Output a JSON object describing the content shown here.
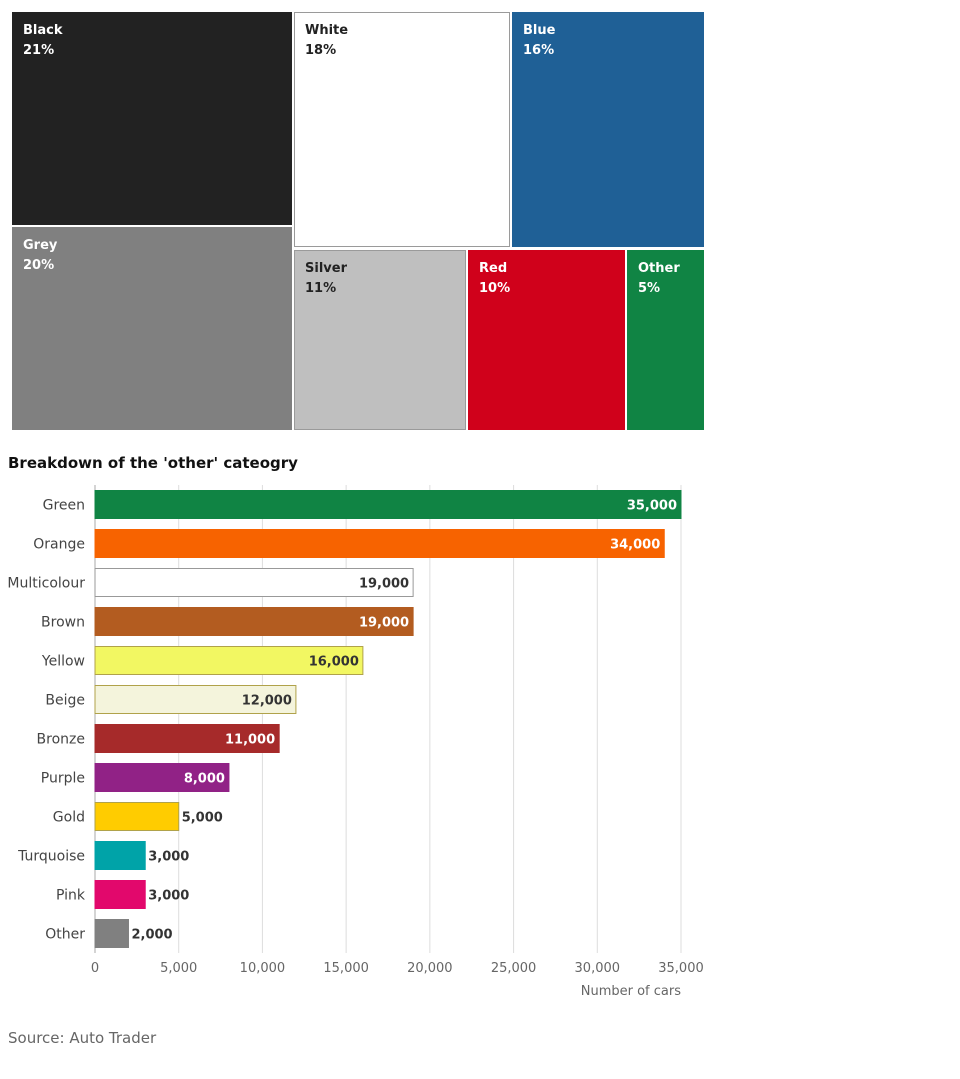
{
  "chart_data": [
    {
      "type": "treemap",
      "tiles": [
        {
          "name": "Black",
          "pct": "21%",
          "value": 21,
          "color": "#222222",
          "text_color": "#ffffff"
        },
        {
          "name": "White",
          "pct": "18%",
          "value": 18,
          "color": "#ffffff",
          "text_color": "#222222"
        },
        {
          "name": "Blue",
          "pct": "16%",
          "value": 16,
          "color": "#1f6096",
          "text_color": "#ffffff"
        },
        {
          "name": "Grey",
          "pct": "20%",
          "value": 20,
          "color": "#808080",
          "text_color": "#ffffff"
        },
        {
          "name": "Silver",
          "pct": "11%",
          "value": 11,
          "color": "#bfbfbf",
          "text_color": "#222222"
        },
        {
          "name": "Red",
          "pct": "10%",
          "value": 10,
          "color": "#d0011b",
          "text_color": "#ffffff"
        },
        {
          "name": "Other",
          "pct": "5%",
          "value": 5,
          "color": "#108444",
          "text_color": "#ffffff"
        }
      ]
    },
    {
      "type": "bar",
      "orientation": "horizontal",
      "title": "Breakdown of the 'other' cateogry",
      "xlabel": "Number of cars",
      "xlim": [
        0,
        35000
      ],
      "xticks": [
        "0",
        "5,000",
        "10,000",
        "15,000",
        "20,000",
        "25,000",
        "30,000",
        "35,000"
      ],
      "grid": true,
      "bars": [
        {
          "category": "Green",
          "value": 35000,
          "label": "35,000",
          "color": "#108444",
          "label_color": "#ffffff"
        },
        {
          "category": "Orange",
          "value": 34000,
          "label": "34,000",
          "color": "#f76300",
          "label_color": "#ffffff"
        },
        {
          "category": "Multicolour",
          "value": 19000,
          "label": "19,000",
          "color": "#ffffff",
          "label_color": "#333333"
        },
        {
          "category": "Brown",
          "value": 19000,
          "label": "19,000",
          "color": "#b35c20",
          "label_color": "#ffffff"
        },
        {
          "category": "Yellow",
          "value": 16000,
          "label": "16,000",
          "color": "#f2f762",
          "label_color": "#333333"
        },
        {
          "category": "Beige",
          "value": 12000,
          "label": "12,000",
          "color": "#f4f4dc",
          "label_color": "#333333"
        },
        {
          "category": "Bronze",
          "value": 11000,
          "label": "11,000",
          "color": "#a62a2a",
          "label_color": "#ffffff"
        },
        {
          "category": "Purple",
          "value": 8000,
          "label": "8,000",
          "color": "#912286",
          "label_color": "#ffffff"
        },
        {
          "category": "Gold",
          "value": 5000,
          "label": "5,000",
          "color": "#ffcc00",
          "label_color": "#333333"
        },
        {
          "category": "Turquoise",
          "value": 3000,
          "label": "3,000",
          "color": "#00a3a8",
          "label_color": "#333333"
        },
        {
          "category": "Pink",
          "value": 3000,
          "label": "3,000",
          "color": "#e2086c",
          "label_color": "#333333"
        },
        {
          "category": "Other",
          "value": 2000,
          "label": "2,000",
          "color": "#808080",
          "label_color": "#333333"
        }
      ]
    }
  ],
  "source": "Source: Auto Trader"
}
